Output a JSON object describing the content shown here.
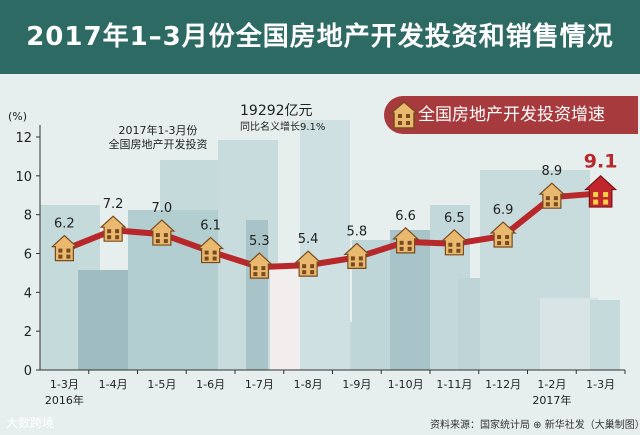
{
  "title": "2017年1–3月份全国房地产开发投资和销售情况",
  "legend_label": "全国房地产开发投资增速",
  "annotation": {
    "period_note": "2017年1-3月份\n全国房地产开发投资",
    "total_value": "19292亿元",
    "total_growth": "同比名义增长9.1%"
  },
  "footer": {
    "left": "大数跨境",
    "right": "资料来源：国家统计局 ⊕ 新华社发（大巢制图）"
  },
  "colors": {
    "title_bg": "#2d6a64",
    "line": "#b8282b",
    "legend_bg": "#a63a3c",
    "background": "#e6eeee",
    "buildings": "#b9d4d6"
  },
  "chart_data": {
    "type": "line",
    "title": "",
    "ylabel": "(%)",
    "ylim": [
      0,
      12
    ],
    "yticks": [
      0,
      2,
      4,
      6,
      8,
      10,
      12
    ],
    "categories": [
      "1-3月",
      "1-4月",
      "1-5月",
      "1-6月",
      "1-7月",
      "1-8月",
      "1-9月",
      "1-10月",
      "1-11月",
      "1-12月",
      "1-2月",
      "1-3月"
    ],
    "year_labels": [
      {
        "index": 0,
        "label": "2016年"
      },
      {
        "index": 10,
        "label": "2017年"
      }
    ],
    "series": [
      {
        "values": [
          6.2,
          7.2,
          7.0,
          6.1,
          5.3,
          5.4,
          5.8,
          6.6,
          6.5,
          6.9,
          8.9,
          9.1
        ]
      }
    ]
  }
}
